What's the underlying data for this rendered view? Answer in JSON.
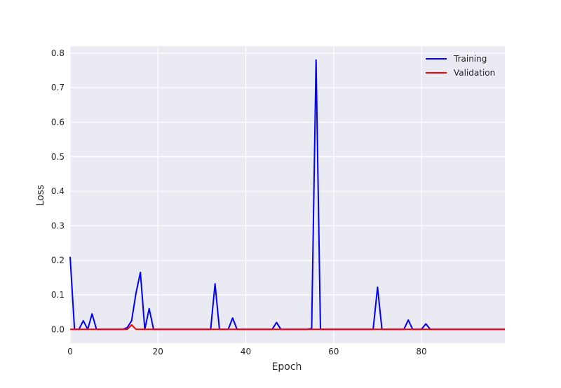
{
  "colors": {
    "plot_background": "#eaeaf2",
    "grid": "#ffffff",
    "training": "#0000ff",
    "validation": "#ff0000"
  },
  "chart_data": {
    "type": "line",
    "title": "",
    "xlabel": "Epoch",
    "ylabel": "Loss",
    "xlim": [
      0,
      99
    ],
    "ylim": [
      -0.04,
      0.82
    ],
    "xticks": [
      0,
      20,
      40,
      60,
      80
    ],
    "yticks": [
      0.0,
      0.1,
      0.2,
      0.3,
      0.4,
      0.5,
      0.6,
      0.7,
      0.8
    ],
    "ytick_labels": [
      "0.0",
      "0.1",
      "0.2",
      "0.3",
      "0.4",
      "0.5",
      "0.6",
      "0.7",
      "0.8"
    ],
    "grid": true,
    "legend_position": "top-right",
    "x": [
      0,
      1,
      2,
      3,
      4,
      5,
      6,
      7,
      8,
      9,
      10,
      11,
      12,
      13,
      14,
      15,
      16,
      17,
      18,
      19,
      20,
      21,
      22,
      23,
      24,
      25,
      26,
      27,
      28,
      29,
      30,
      31,
      32,
      33,
      34,
      35,
      36,
      37,
      38,
      39,
      40,
      41,
      42,
      43,
      44,
      45,
      46,
      47,
      48,
      49,
      50,
      51,
      52,
      53,
      54,
      55,
      56,
      57,
      58,
      59,
      60,
      61,
      62,
      63,
      64,
      65,
      66,
      67,
      68,
      69,
      70,
      71,
      72,
      73,
      74,
      75,
      76,
      77,
      78,
      79,
      80,
      81,
      82,
      83,
      84,
      85,
      86,
      87,
      88,
      89,
      90,
      91,
      92,
      93,
      94,
      95,
      96,
      97,
      98,
      99
    ],
    "series": [
      {
        "name": "Training",
        "color": "#0000ff",
        "values": [
          0.21,
          0.0,
          0.0,
          0.025,
          0.0,
          0.045,
          0.0,
          0.0,
          0.0,
          0.0,
          0.0,
          0.0,
          0.0,
          0.005,
          0.025,
          0.105,
          0.165,
          0.0,
          0.06,
          0.0,
          0.0,
          0.0,
          0.0,
          0.0,
          0.0,
          0.0,
          0.0,
          0.0,
          0.0,
          0.0,
          0.0,
          0.0,
          0.0,
          0.132,
          0.0,
          0.0,
          0.0,
          0.033,
          0.0,
          0.0,
          0.0,
          0.0,
          0.0,
          0.0,
          0.0,
          0.0,
          0.0,
          0.02,
          0.0,
          0.0,
          0.0,
          0.0,
          0.0,
          0.0,
          0.0,
          0.003,
          0.78,
          0.0,
          0.0,
          0.0,
          0.0,
          0.0,
          0.0,
          0.0,
          0.0,
          0.0,
          0.0,
          0.0,
          0.0,
          0.0,
          0.122,
          0.0,
          0.0,
          0.0,
          0.0,
          0.0,
          0.0,
          0.027,
          0.0,
          0.0,
          0.0,
          0.016,
          0.0,
          0.0,
          0.0,
          0.0,
          0.0,
          0.0,
          0.0,
          0.0,
          0.0,
          0.0,
          0.0,
          0.0,
          0.0,
          0.0,
          0.0,
          0.0,
          0.0,
          0.0
        ]
      },
      {
        "name": "Validation",
        "color": "#ff0000",
        "values": [
          0.0,
          0.0,
          0.0,
          0.0,
          0.0,
          0.0,
          0.0,
          0.0,
          0.0,
          0.0,
          0.0,
          0.0,
          0.0,
          0.0,
          0.013,
          0.0,
          0.0,
          0.0,
          0.0,
          0.0,
          0.0,
          0.0,
          0.0,
          0.0,
          0.0,
          0.0,
          0.0,
          0.0,
          0.0,
          0.0,
          0.0,
          0.0,
          0.0,
          0.0,
          0.0,
          0.0,
          0.0,
          0.0,
          0.0,
          0.0,
          0.0,
          0.0,
          0.0,
          0.0,
          0.0,
          0.0,
          0.0,
          0.0,
          0.0,
          0.0,
          0.0,
          0.0,
          0.0,
          0.0,
          0.0,
          0.0,
          0.0,
          0.0,
          0.0,
          0.0,
          0.0,
          0.0,
          0.0,
          0.0,
          0.0,
          0.0,
          0.0,
          0.0,
          0.0,
          0.0,
          0.0,
          0.0,
          0.0,
          0.0,
          0.0,
          0.0,
          0.0,
          0.0,
          0.0,
          0.0,
          0.0,
          0.0,
          0.0,
          0.0,
          0.0,
          0.0,
          0.0,
          0.0,
          0.0,
          0.0,
          0.0,
          0.0,
          0.0,
          0.0,
          0.0,
          0.0,
          0.0,
          0.0,
          0.0,
          0.0
        ]
      }
    ]
  }
}
